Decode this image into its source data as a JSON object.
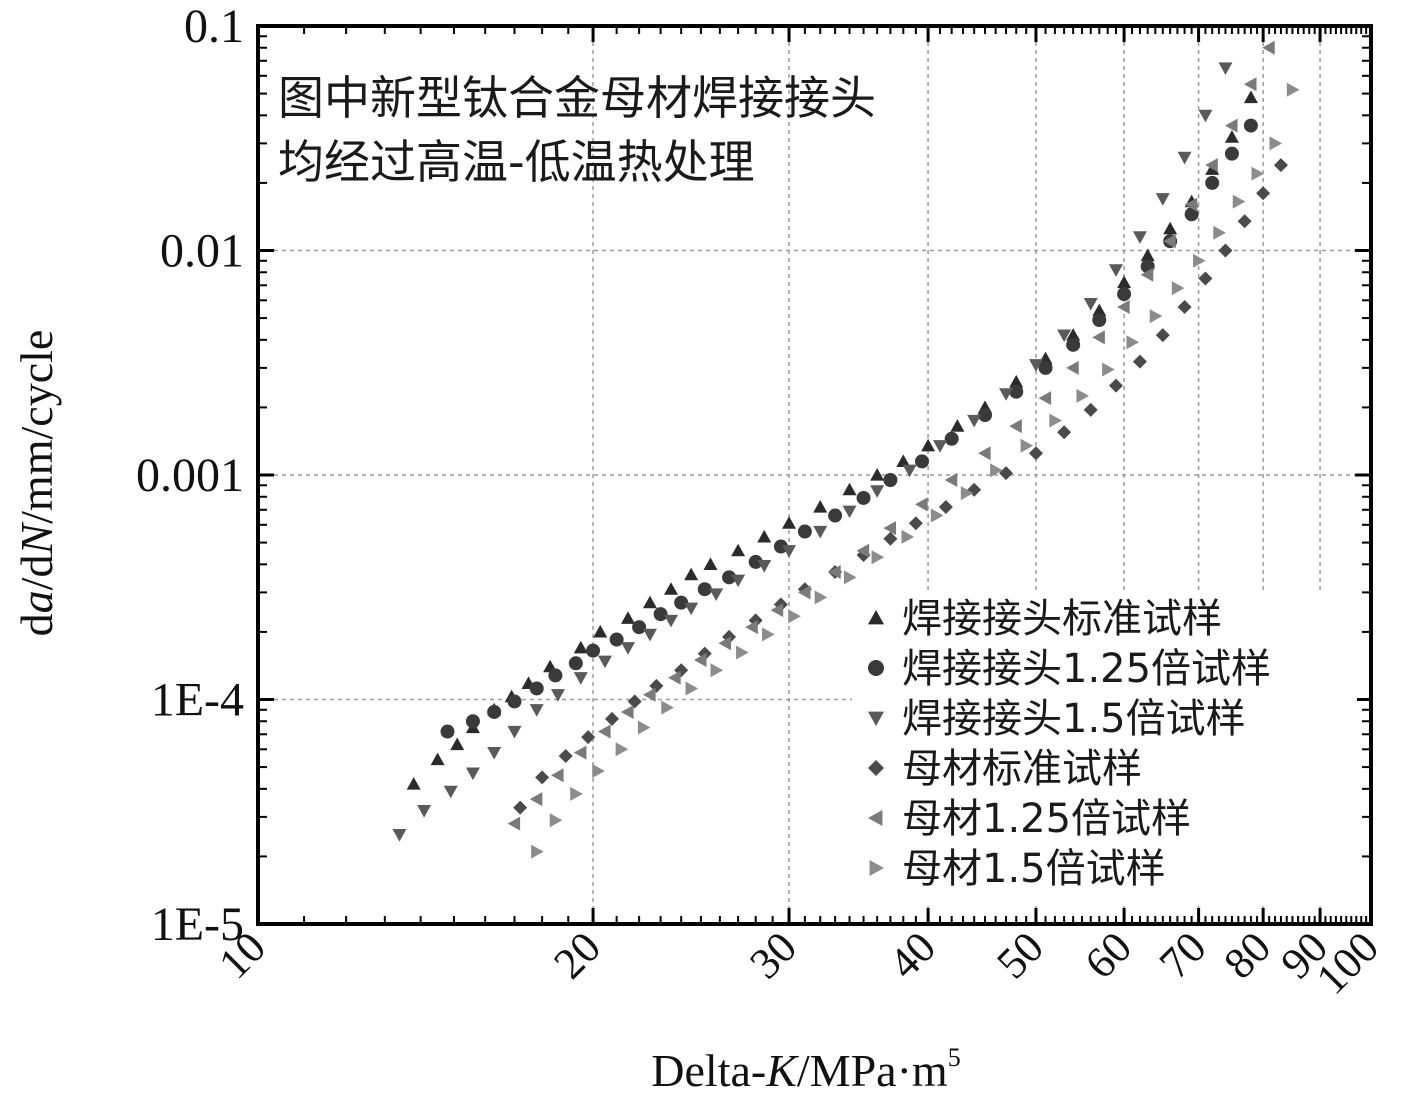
{
  "chart_data": {
    "type": "scatter",
    "title": "",
    "xlabel_main": "Delta-",
    "xlabel_italic": "K",
    "xlabel_unit": "/MPa·m",
    "xlabel_sup": "5",
    "ylabel_d1": "d",
    "ylabel_a": "a",
    "ylabel_d2": "/d",
    "ylabel_N": "N",
    "ylabel_unit": "/mm/cycle",
    "x_scale": "log",
    "y_scale": "log",
    "xlim": [
      10,
      100
    ],
    "ylim": [
      1e-05,
      0.1
    ],
    "x_ticks": [
      {
        "value": 10,
        "label": "10"
      },
      {
        "value": 20,
        "label": "20"
      },
      {
        "value": 30,
        "label": "30"
      },
      {
        "value": 40,
        "label": "40"
      },
      {
        "value": 50,
        "label": "50"
      },
      {
        "value": 60,
        "label": "60"
      },
      {
        "value": 70,
        "label": "70"
      },
      {
        "value": 80,
        "label": "80"
      },
      {
        "value": 90,
        "label": "90"
      },
      {
        "value": 100,
        "label": "100"
      }
    ],
    "y_ticks": [
      {
        "value": 1e-05,
        "label": "1E-5"
      },
      {
        "value": 0.0001,
        "label": "1E-4"
      },
      {
        "value": 0.001,
        "label": "0.001"
      },
      {
        "value": 0.01,
        "label": "0.01"
      },
      {
        "value": 0.1,
        "label": "0.1"
      }
    ],
    "grid": true,
    "legend_position": "bottom-right",
    "annotation_lines": [
      "图中新型钛合金母材焊接接头",
      "均经过高温-低温热处理"
    ],
    "series": [
      {
        "name": "焊接接头标准试样",
        "marker": "triangle-up",
        "color": "#2b2b2b",
        "points": [
          [
            13.8,
            4.2e-05
          ],
          [
            14.5,
            5.4e-05
          ],
          [
            15.1,
            6.3e-05
          ],
          [
            15.6,
            7.5e-05
          ],
          [
            16.3,
            9e-05
          ],
          [
            16.9,
            0.000103
          ],
          [
            17.5,
            0.000118
          ],
          [
            18.3,
            0.00014
          ],
          [
            19.5,
            0.00017
          ],
          [
            20.3,
            0.0002
          ],
          [
            21.5,
            0.00023
          ],
          [
            22.5,
            0.00027
          ],
          [
            23.5,
            0.00031
          ],
          [
            24.5,
            0.00036
          ],
          [
            25.5,
            0.0004
          ],
          [
            27,
            0.00046
          ],
          [
            28.5,
            0.00053
          ],
          [
            30,
            0.00061
          ],
          [
            32,
            0.00072
          ],
          [
            34,
            0.00086
          ],
          [
            36,
            0.001
          ],
          [
            38,
            0.00115
          ],
          [
            40,
            0.00135
          ],
          [
            42.5,
            0.00165
          ],
          [
            45,
            0.002
          ],
          [
            48,
            0.0026
          ],
          [
            51,
            0.0033
          ],
          [
            54,
            0.0042
          ],
          [
            57,
            0.0054
          ],
          [
            60,
            0.0072
          ],
          [
            63,
            0.0095
          ],
          [
            66,
            0.0125
          ],
          [
            69,
            0.0165
          ],
          [
            72,
            0.023
          ],
          [
            75,
            0.032
          ],
          [
            78,
            0.048
          ]
        ]
      },
      {
        "name": "焊接接头1.25倍试样",
        "marker": "circle",
        "color": "#3a3a3a",
        "points": [
          [
            14.8,
            7.2e-05
          ],
          [
            15.6,
            8e-05
          ],
          [
            16.3,
            8.8e-05
          ],
          [
            17.0,
            9.8e-05
          ],
          [
            17.8,
            0.000112
          ],
          [
            18.5,
            0.000128
          ],
          [
            19.3,
            0.000145
          ],
          [
            20.0,
            0.000165
          ],
          [
            21.0,
            0.000185
          ],
          [
            22.0,
            0.00021
          ],
          [
            23.0,
            0.00024
          ],
          [
            24.0,
            0.00027
          ],
          [
            25.2,
            0.00031
          ],
          [
            26.5,
            0.00035
          ],
          [
            28,
            0.00041
          ],
          [
            29.5,
            0.00048
          ],
          [
            31,
            0.00056
          ],
          [
            33,
            0.00066
          ],
          [
            35,
            0.00079
          ],
          [
            37,
            0.00095
          ],
          [
            39.5,
            0.00115
          ],
          [
            42,
            0.00145
          ],
          [
            45,
            0.00185
          ],
          [
            48,
            0.00235
          ],
          [
            51,
            0.003
          ],
          [
            54,
            0.0038
          ],
          [
            57,
            0.0049
          ],
          [
            60,
            0.0064
          ],
          [
            63,
            0.0085
          ],
          [
            66,
            0.011
          ],
          [
            69,
            0.0145
          ],
          [
            72,
            0.02
          ],
          [
            75,
            0.027
          ],
          [
            78,
            0.036
          ]
        ]
      },
      {
        "name": "焊接接头1.5倍试样",
        "marker": "triangle-down",
        "color": "#5a5a5a",
        "points": [
          [
            13.4,
            2.5e-05
          ],
          [
            14.1,
            3.2e-05
          ],
          [
            14.9,
            3.9e-05
          ],
          [
            15.6,
            4.7e-05
          ],
          [
            16.3,
            5.8e-05
          ],
          [
            17.0,
            7.2e-05
          ],
          [
            17.8,
            9e-05
          ],
          [
            18.6,
            0.000105
          ],
          [
            19.5,
            0.000125
          ],
          [
            20.5,
            0.000148
          ],
          [
            21.5,
            0.00017
          ],
          [
            22.5,
            0.000195
          ],
          [
            23.5,
            0.000225
          ],
          [
            24.5,
            0.000255
          ],
          [
            25.8,
            0.000295
          ],
          [
            27,
            0.00034
          ],
          [
            28.5,
            0.000395
          ],
          [
            30,
            0.00046
          ],
          [
            32,
            0.00056
          ],
          [
            34,
            0.00069
          ],
          [
            36,
            0.00085
          ],
          [
            38.5,
            0.00105
          ],
          [
            41,
            0.00135
          ],
          [
            44,
            0.00175
          ],
          [
            47,
            0.0023
          ],
          [
            50,
            0.0031
          ],
          [
            53,
            0.0042
          ],
          [
            56,
            0.0058
          ],
          [
            59,
            0.0082
          ],
          [
            62,
            0.0115
          ],
          [
            65,
            0.017
          ],
          [
            68,
            0.026
          ],
          [
            71,
            0.04
          ],
          [
            74,
            0.065
          ]
        ]
      },
      {
        "name": "母材标准试样",
        "marker": "diamond",
        "color": "#4a4a4a",
        "points": [
          [
            17.2,
            3.3e-05
          ],
          [
            18.0,
            4.5e-05
          ],
          [
            18.9,
            5.6e-05
          ],
          [
            19.8,
            6.8e-05
          ],
          [
            20.8,
            8.2e-05
          ],
          [
            21.8,
            9.8e-05
          ],
          [
            22.8,
            0.000115
          ],
          [
            24,
            0.000135
          ],
          [
            25.2,
            0.00016
          ],
          [
            26.5,
            0.00019
          ],
          [
            28,
            0.000225
          ],
          [
            29.5,
            0.000265
          ],
          [
            31,
            0.00031
          ],
          [
            33,
            0.00037
          ],
          [
            35,
            0.00044
          ],
          [
            37,
            0.00052
          ],
          [
            39,
            0.00061
          ],
          [
            41.5,
            0.00072
          ],
          [
            44,
            0.00086
          ],
          [
            47,
            0.00102
          ],
          [
            50,
            0.00125
          ],
          [
            53,
            0.00155
          ],
          [
            56,
            0.00195
          ],
          [
            59,
            0.0025
          ],
          [
            62,
            0.0032
          ],
          [
            65,
            0.0042
          ],
          [
            68,
            0.0056
          ],
          [
            71,
            0.0075
          ],
          [
            74,
            0.01
          ],
          [
            77,
            0.0135
          ],
          [
            80,
            0.018
          ],
          [
            83,
            0.024
          ]
        ]
      },
      {
        "name": "母材1.25倍试样",
        "marker": "triangle-left",
        "color": "#7a7a7a",
        "points": [
          [
            17.0,
            2.8e-05
          ],
          [
            17.8,
            3.6e-05
          ],
          [
            18.6,
            4.6e-05
          ],
          [
            19.5,
            5.8e-05
          ],
          [
            20.5,
            7.2e-05
          ],
          [
            21.5,
            8.8e-05
          ],
          [
            22.5,
            0.000105
          ],
          [
            23.7,
            0.000125
          ],
          [
            25,
            0.00015
          ],
          [
            26.3,
            0.000178
          ],
          [
            27.8,
            0.00021
          ],
          [
            29.3,
            0.00025
          ],
          [
            31,
            0.0003
          ],
          [
            33,
            0.00037
          ],
          [
            35,
            0.00046
          ],
          [
            37,
            0.00058
          ],
          [
            39.5,
            0.00074
          ],
          [
            42,
            0.00095
          ],
          [
            45,
            0.00125
          ],
          [
            48,
            0.00165
          ],
          [
            51,
            0.0022
          ],
          [
            54,
            0.003
          ],
          [
            57,
            0.0041
          ],
          [
            60,
            0.0056
          ],
          [
            63,
            0.0078
          ],
          [
            66,
            0.011
          ],
          [
            69,
            0.016
          ],
          [
            72,
            0.024
          ],
          [
            75,
            0.036
          ],
          [
            78,
            0.055
          ],
          [
            81,
            0.08
          ]
        ]
      },
      {
        "name": "母材1.5倍试样",
        "marker": "triangle-right",
        "color": "#8c8c8c",
        "points": [
          [
            17.8,
            2.1e-05
          ],
          [
            18.5,
            2.9e-05
          ],
          [
            19.3,
            3.8e-05
          ],
          [
            20.2,
            4.8e-05
          ],
          [
            21.2,
            6e-05
          ],
          [
            22.2,
            7.5e-05
          ],
          [
            23.3,
            9.2e-05
          ],
          [
            24.5,
            0.000112
          ],
          [
            25.8,
            0.000135
          ],
          [
            27.2,
            0.000162
          ],
          [
            28.7,
            0.000195
          ],
          [
            30.3,
            0.000235
          ],
          [
            32,
            0.000285
          ],
          [
            34,
            0.00035
          ],
          [
            36,
            0.00043
          ],
          [
            38.3,
            0.00053
          ],
          [
            40.7,
            0.00066
          ],
          [
            43.3,
            0.00083
          ],
          [
            46,
            0.00105
          ],
          [
            49,
            0.00135
          ],
          [
            52,
            0.00175
          ],
          [
            55,
            0.00225
          ],
          [
            58,
            0.00295
          ],
          [
            61,
            0.0039
          ],
          [
            64,
            0.0051
          ],
          [
            67,
            0.0068
          ],
          [
            70,
            0.009
          ],
          [
            73,
            0.012
          ],
          [
            76,
            0.0165
          ],
          [
            79,
            0.022
          ],
          [
            82,
            0.03
          ],
          [
            85,
            0.052
          ]
        ]
      }
    ]
  }
}
